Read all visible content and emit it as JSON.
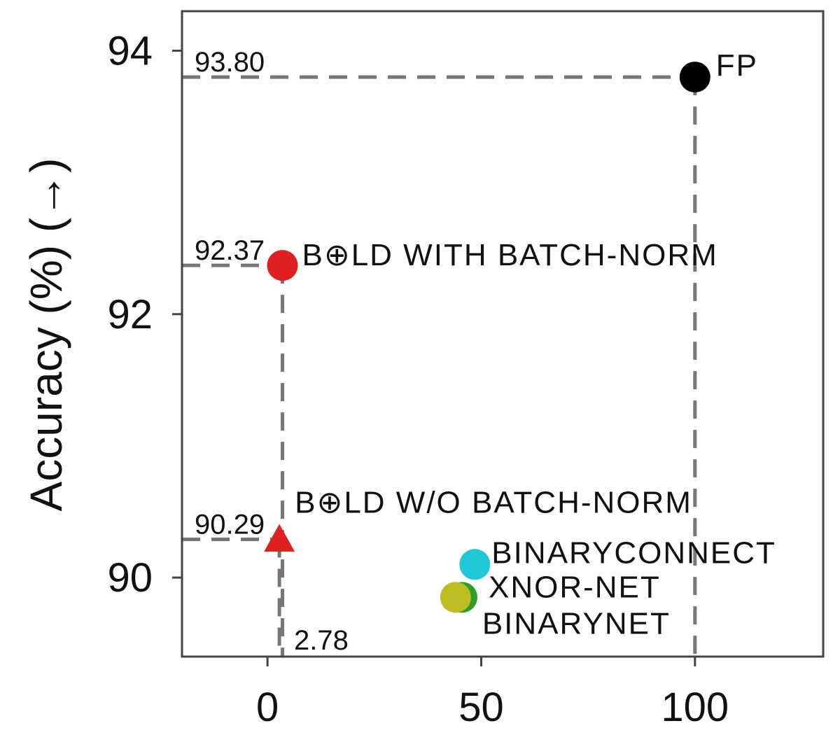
{
  "chart_data": {
    "type": "scatter",
    "xlim": [
      -20,
      130
    ],
    "ylim": [
      89.4,
      94.3
    ],
    "x_ticks": [
      0,
      50,
      100
    ],
    "y_ticks": [
      90,
      92,
      94
    ],
    "x_tick_labels": [
      "0",
      "50",
      "100"
    ],
    "y_tick_labels": [
      "90",
      "92",
      "94"
    ],
    "xlabel": "",
    "ylabel": "Accuracy (%) (→)",
    "grid": false,
    "points": [
      {
        "label": "FP",
        "x": 100,
        "y": 93.8,
        "color": "#000000",
        "marker": "circle"
      },
      {
        "label": "B⊕LD WITH BATCH-NORM",
        "x": 3.5,
        "y": 92.37,
        "color": "#e02020",
        "marker": "circle"
      },
      {
        "label": "B⊕LD W/O BATCH-NORM",
        "x": 2.78,
        "y": 90.29,
        "color": "#e02020",
        "marker": "triangle"
      },
      {
        "label": "BINARYCONNECT",
        "x": 48.5,
        "y": 90.1,
        "color": "#1ec8d8",
        "marker": "circle"
      },
      {
        "label": "XNOR-NET",
        "x": 45.5,
        "y": 89.85,
        "color": "#2ca02c",
        "marker": "circle"
      },
      {
        "label": "BINARYNET",
        "x": 44,
        "y": 89.85,
        "color": "#bcbd22",
        "marker": "circle"
      }
    ],
    "annotations": [
      {
        "text": "93.80",
        "value": 93.8
      },
      {
        "text": "92.37",
        "value": 92.37
      },
      {
        "text": "90.29",
        "value": 90.29
      },
      {
        "text": "2.78",
        "value": 2.78
      }
    ],
    "guides": [
      {
        "from": [
          -20,
          93.8
        ],
        "to": [
          100,
          93.8
        ]
      },
      {
        "from": [
          100,
          93.8
        ],
        "to": [
          100,
          89.4
        ]
      },
      {
        "from": [
          -20,
          92.37
        ],
        "to": [
          3.5,
          92.37
        ]
      },
      {
        "from": [
          3.5,
          92.37
        ],
        "to": [
          3.5,
          89.4
        ]
      },
      {
        "from": [
          -20,
          90.29
        ],
        "to": [
          2.78,
          90.29
        ]
      },
      {
        "from": [
          2.78,
          90.29
        ],
        "to": [
          2.78,
          89.4
        ]
      }
    ],
    "colors": {
      "axis": "#444444",
      "guide": "#777777",
      "text": "#111111"
    }
  }
}
